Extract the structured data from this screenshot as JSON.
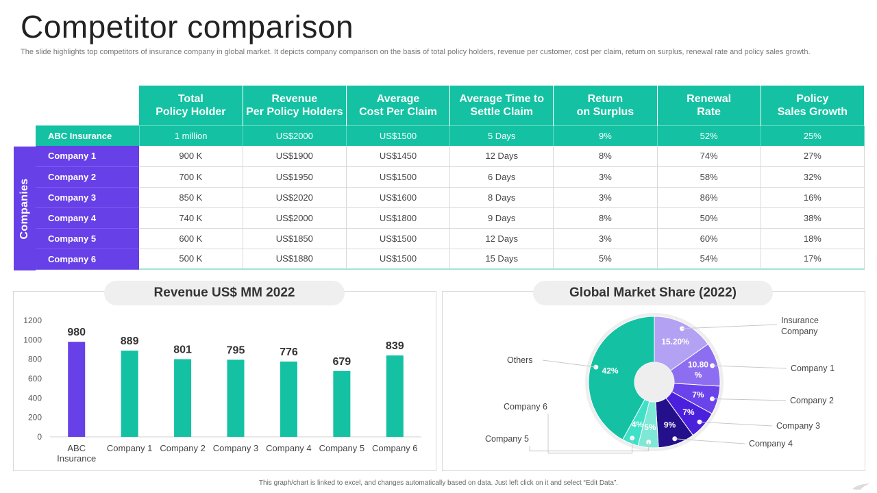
{
  "title": "Competitor comparison",
  "subtitle": "The slide highlights top competitors of insurance company in global market. It depicts company comparison on the basis of total policy holders, revenue per customer, cost per claim, return on surplus, renewal rate and policy sales growth.",
  "table": {
    "headers": [
      [
        "Total",
        "Policy Holder"
      ],
      [
        "Revenue",
        "Per Policy Holders"
      ],
      [
        "Average",
        "Cost Per Claim"
      ],
      [
        "Average Time to",
        "Settle Claim"
      ],
      [
        "Return",
        "on Surplus"
      ],
      [
        "Renewal",
        "Rate"
      ],
      [
        "Policy",
        "Sales Growth"
      ]
    ],
    "side_label": "Companies",
    "abc_row": {
      "name": "ABC Insurance",
      "cells": [
        "1 million",
        "US$2000",
        "US$1500",
        "5 Days",
        "9%",
        "52%",
        "25%"
      ]
    },
    "rows": [
      {
        "name": "Company 1",
        "cells": [
          "900 K",
          "US$1900",
          "US$1450",
          "12 Days",
          "8%",
          "74%",
          "27%"
        ]
      },
      {
        "name": "Company 2",
        "cells": [
          "700 K",
          "US$1950",
          "US$1500",
          "6 Days",
          "3%",
          "58%",
          "32%"
        ]
      },
      {
        "name": "Company 3",
        "cells": [
          "850 K",
          "US$2020",
          "US$1600",
          "8 Days",
          "3%",
          "86%",
          "16%"
        ]
      },
      {
        "name": "Company 4",
        "cells": [
          "740 K",
          "US$2000",
          "US$1800",
          "9 Days",
          "8%",
          "50%",
          "38%"
        ]
      },
      {
        "name": "Company 5",
        "cells": [
          "600 K",
          "US$1850",
          "US$1500",
          "12 Days",
          "3%",
          "60%",
          "18%"
        ]
      },
      {
        "name": "Company 6",
        "cells": [
          "500 K",
          "US$1880",
          "US$1500",
          "15 Days",
          "5%",
          "54%",
          "17%"
        ]
      }
    ]
  },
  "colors": {
    "teal": "#14c2a3",
    "purple": "#6840e8"
  },
  "chart_data": [
    {
      "type": "bar",
      "title": "Revenue US$ MM 2022",
      "categories": [
        "ABC Insurance",
        "Company 1",
        "Company 2",
        "Company 3",
        "Company 4",
        "Company 5",
        "Company 6"
      ],
      "category_lines": [
        [
          "ABC",
          "Insurance"
        ],
        [
          "Company 1"
        ],
        [
          "Company 2"
        ],
        [
          "Company 3"
        ],
        [
          "Company 4"
        ],
        [
          "Company 5"
        ],
        [
          "Company 6"
        ]
      ],
      "values": [
        980,
        889,
        801,
        795,
        776,
        679,
        839
      ],
      "bar_colors": [
        "#6840e8",
        "#14c2a3",
        "#14c2a3",
        "#14c2a3",
        "#14c2a3",
        "#14c2a3",
        "#14c2a3"
      ],
      "yticks": [
        0,
        200,
        400,
        600,
        800,
        1000,
        1200
      ],
      "ylim": [
        0,
        1200
      ],
      "xlabel": "",
      "ylabel": "",
      "grid": false
    },
    {
      "type": "pie",
      "title": "Global Market Share (2022)",
      "slices": [
        {
          "label": "Insurance Company",
          "label_lines": [
            "Insurance",
            "Company"
          ],
          "value": 15.2,
          "text": "15.20%",
          "text_lines": [
            "15.20%"
          ],
          "color": "#b3a1f3"
        },
        {
          "label": "Company 1",
          "label_lines": [
            "Company  1"
          ],
          "value": 10.8,
          "text": "10.80 %",
          "text_lines": [
            "10.80",
            "%"
          ],
          "color": "#8e6ef0"
        },
        {
          "label": "Company 2",
          "label_lines": [
            "Company  2"
          ],
          "value": 7,
          "text": "7%",
          "text_lines": [
            "7%"
          ],
          "color": "#6a43ea"
        },
        {
          "label": "Company 3",
          "label_lines": [
            "Company  3"
          ],
          "value": 7,
          "text": "7%",
          "text_lines": [
            "7%"
          ],
          "color": "#4a20dc"
        },
        {
          "label": "Company 4",
          "label_lines": [
            "Company  4"
          ],
          "value": 9,
          "text": "9%",
          "text_lines": [
            "9%"
          ],
          "color": "#24108a"
        },
        {
          "label": "Company 5",
          "label_lines": [
            "Company  5"
          ],
          "value": 5,
          "text": "5%",
          "text_lines": [
            "5%"
          ],
          "color": "#7ee8d6"
        },
        {
          "label": "Company 6",
          "label_lines": [
            "Company  6"
          ],
          "value": 4,
          "text": "4%",
          "text_lines": [
            "4%"
          ],
          "color": "#3fe0c8"
        },
        {
          "label": "Others",
          "label_lines": [
            "Others"
          ],
          "value": 42,
          "text": "42%",
          "text_lines": [
            "42%"
          ],
          "color": "#14c2a3"
        }
      ]
    }
  ],
  "footer": "This graph/chart is linked to excel, and changes automatically based on data. Just left click on it and select “Edit Data”."
}
